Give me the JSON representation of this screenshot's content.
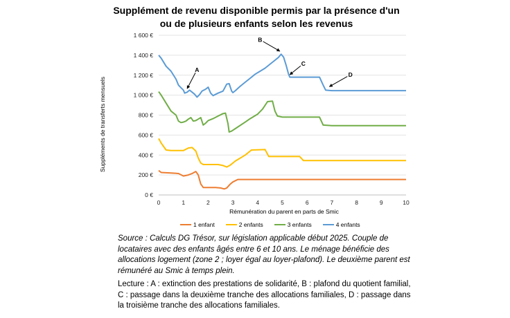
{
  "chart_data": {
    "type": "line",
    "title_line1": "Supplément de revenu disponible permis par la présence d'un",
    "title_line2": "ou de plusieurs enfants selon les revenus",
    "xlabel": "Rémunération du parent en parts de Smic",
    "ylabel": "Suppléments de transferts mensuels",
    "xlim": [
      0,
      10
    ],
    "ylim": [
      0,
      1600
    ],
    "x_ticks": [
      "0",
      "1",
      "2",
      "3",
      "4",
      "5",
      "6",
      "7",
      "8",
      "9",
      "10"
    ],
    "y_ticks": [
      "0 €",
      "200 €",
      "400 €",
      "600 €",
      "800 €",
      "1 000 €",
      "1 200 €",
      "1 400 €",
      "1 600 €"
    ],
    "series": [
      {
        "name": "1 enfant",
        "color": "#ed7d31",
        "points": [
          [
            0,
            245
          ],
          [
            0.1,
            225
          ],
          [
            0.5,
            220
          ],
          [
            0.8,
            215
          ],
          [
            1.0,
            190
          ],
          [
            1.2,
            200
          ],
          [
            1.35,
            215
          ],
          [
            1.5,
            235
          ],
          [
            1.6,
            200
          ],
          [
            1.7,
            110
          ],
          [
            1.8,
            75
          ],
          [
            2.0,
            75
          ],
          [
            2.3,
            75
          ],
          [
            2.5,
            70
          ],
          [
            2.65,
            60
          ],
          [
            2.75,
            70
          ],
          [
            2.9,
            110
          ],
          [
            3.0,
            130
          ],
          [
            3.2,
            155
          ],
          [
            4,
            155
          ],
          [
            5,
            155
          ],
          [
            6,
            155
          ],
          [
            7,
            155
          ],
          [
            8,
            155
          ],
          [
            9,
            155
          ],
          [
            10,
            155
          ]
        ]
      },
      {
        "name": "2 enfants",
        "color": "#ffc000",
        "points": [
          [
            0,
            565
          ],
          [
            0.1,
            520
          ],
          [
            0.3,
            450
          ],
          [
            0.5,
            445
          ],
          [
            0.7,
            445
          ],
          [
            1.0,
            445
          ],
          [
            1.2,
            470
          ],
          [
            1.35,
            475
          ],
          [
            1.5,
            440
          ],
          [
            1.6,
            370
          ],
          [
            1.7,
            320
          ],
          [
            1.8,
            305
          ],
          [
            2.0,
            305
          ],
          [
            2.4,
            305
          ],
          [
            2.6,
            295
          ],
          [
            2.75,
            280
          ],
          [
            2.9,
            300
          ],
          [
            3.1,
            340
          ],
          [
            3.5,
            400
          ],
          [
            3.75,
            450
          ],
          [
            4.3,
            455
          ],
          [
            4.45,
            385
          ],
          [
            5,
            385
          ],
          [
            5.7,
            385
          ],
          [
            5.85,
            345
          ],
          [
            7,
            345
          ],
          [
            8,
            345
          ],
          [
            10,
            345
          ]
        ]
      },
      {
        "name": "3 enfants",
        "color": "#70ad47",
        "points": [
          [
            0,
            1035
          ],
          [
            0.1,
            1000
          ],
          [
            0.3,
            920
          ],
          [
            0.5,
            840
          ],
          [
            0.7,
            800
          ],
          [
            0.8,
            740
          ],
          [
            0.9,
            725
          ],
          [
            1.0,
            730
          ],
          [
            1.1,
            740
          ],
          [
            1.2,
            760
          ],
          [
            1.3,
            775
          ],
          [
            1.4,
            740
          ],
          [
            1.5,
            745
          ],
          [
            1.6,
            760
          ],
          [
            1.7,
            775
          ],
          [
            1.8,
            700
          ],
          [
            1.9,
            720
          ],
          [
            2.0,
            745
          ],
          [
            2.2,
            765
          ],
          [
            2.4,
            790
          ],
          [
            2.6,
            815
          ],
          [
            2.7,
            820
          ],
          [
            2.8,
            715
          ],
          [
            2.85,
            630
          ],
          [
            2.95,
            640
          ],
          [
            3.1,
            665
          ],
          [
            3.5,
            730
          ],
          [
            3.7,
            765
          ],
          [
            4.0,
            810
          ],
          [
            4.2,
            860
          ],
          [
            4.4,
            935
          ],
          [
            4.6,
            940
          ],
          [
            4.7,
            840
          ],
          [
            4.8,
            790
          ],
          [
            5,
            780
          ],
          [
            6.5,
            780
          ],
          [
            6.65,
            700
          ],
          [
            7,
            695
          ],
          [
            10,
            695
          ]
        ]
      },
      {
        "name": "4 enfants",
        "color": "#5b9bd5",
        "points": [
          [
            0,
            1400
          ],
          [
            0.1,
            1370
          ],
          [
            0.3,
            1290
          ],
          [
            0.5,
            1240
          ],
          [
            0.7,
            1160
          ],
          [
            0.8,
            1100
          ],
          [
            0.9,
            1075
          ],
          [
            1.0,
            1050
          ],
          [
            1.05,
            1020
          ],
          [
            1.15,
            1030
          ],
          [
            1.25,
            1050
          ],
          [
            1.35,
            1030
          ],
          [
            1.45,
            1010
          ],
          [
            1.55,
            980
          ],
          [
            1.65,
            1005
          ],
          [
            1.75,
            1040
          ],
          [
            1.9,
            1060
          ],
          [
            2.0,
            1080
          ],
          [
            2.1,
            1020
          ],
          [
            2.2,
            995
          ],
          [
            2.4,
            1020
          ],
          [
            2.6,
            1040
          ],
          [
            2.75,
            1110
          ],
          [
            2.85,
            1115
          ],
          [
            2.95,
            1040
          ],
          [
            3.0,
            1025
          ],
          [
            3.1,
            1045
          ],
          [
            3.3,
            1090
          ],
          [
            3.5,
            1130
          ],
          [
            3.7,
            1170
          ],
          [
            3.9,
            1210
          ],
          [
            4.1,
            1240
          ],
          [
            4.3,
            1270
          ],
          [
            4.5,
            1310
          ],
          [
            4.7,
            1350
          ],
          [
            4.85,
            1380
          ],
          [
            4.95,
            1410
          ],
          [
            5.05,
            1380
          ],
          [
            5.15,
            1300
          ],
          [
            5.25,
            1210
          ],
          [
            5.3,
            1180
          ],
          [
            5.5,
            1180
          ],
          [
            6.0,
            1180
          ],
          [
            6.5,
            1180
          ],
          [
            6.65,
            1100
          ],
          [
            6.75,
            1050
          ],
          [
            7,
            1045
          ],
          [
            10,
            1045
          ]
        ]
      }
    ],
    "annotations": [
      {
        "label": "A",
        "lx": 1.55,
        "ly": 1255,
        "tx": 1.15,
        "ty": 1065
      },
      {
        "label": "B",
        "lx": 4.1,
        "ly": 1555,
        "tx": 4.9,
        "ty": 1440
      },
      {
        "label": "C",
        "lx": 5.85,
        "ly": 1315,
        "tx": 5.3,
        "ty": 1205
      },
      {
        "label": "D",
        "lx": 7.75,
        "ly": 1205,
        "tx": 6.9,
        "ty": 1085
      }
    ]
  },
  "source_text": "Source : Calculs DG Trésor, sur législation applicable début 2025. Couple de locataires avec des enfants âgés entre 6 et 10 ans. Le ménage bénéficie des allocations logement (zone 2 ; loyer égal au loyer-plafond). Le deuxième parent est rémunéré au Smic à temps plein.",
  "lecture_text": "Lecture : A : extinction des prestations de solidarité, B : plafond du quotient familial, C : passage dans la deuxième tranche des allocations familiales, D : passage dans la troisième tranche des allocations familiales."
}
